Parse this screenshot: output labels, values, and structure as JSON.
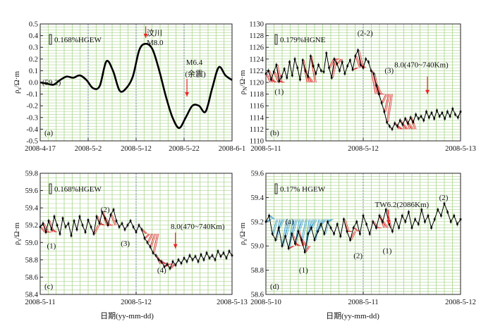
{
  "figure": {
    "xlabel_c": "日期(yy-mm-dd)",
    "xlabel_d": "日期(yy-mm-dd)"
  },
  "chart_data": [
    {
      "id": "a",
      "type": "line",
      "panel_label": "(a)",
      "ylabel": "ρs/Ω·m",
      "ylabel_main": "ρ",
      "ylabel_sub": "s",
      "ylabel_rest": "/Ω·m",
      "ylim": [
        -0.5,
        0.5
      ],
      "yticks": [
        "0.5",
        "0.4",
        "0.3",
        "0.2",
        "0.1",
        "0.0",
        "-0.1",
        "-0.2",
        "-0.3",
        "-0.4",
        "-0.5"
      ],
      "xticks": [
        "2008-4-17",
        "2008-5-2",
        "2008-5-12",
        "2008-5-22",
        "2008-6-1"
      ],
      "scale_text": "0.168%HGEW",
      "annotations": [
        {
          "key": "base",
          "text": "(59.2)"
        },
        {
          "key": "wenchuan1",
          "text": "汶川"
        },
        {
          "key": "wenchuan2",
          "text": "M8.0"
        },
        {
          "key": "after1",
          "text": "M6.4"
        },
        {
          "key": "after2",
          "text": "(余震)"
        }
      ],
      "series": [
        {
          "values": [
            0.0,
            -0.01,
            -0.02,
            0.02,
            0.05,
            0.04,
            0.06,
            0.02,
            -0.05,
            -0.03,
            0.18,
            0.1,
            -0.07,
            -0.05,
            0.05,
            0.28,
            0.33,
            0.28,
            0.1,
            -0.12,
            -0.3,
            -0.39,
            -0.3,
            -0.2,
            -0.2,
            -0.25,
            -0.05,
            0.13,
            0.06,
            0.02
          ]
        }
      ]
    },
    {
      "id": "b",
      "type": "line",
      "panel_label": "(b)",
      "ylabel": "ρN/Ω·m",
      "ylabel_main": "ρ",
      "ylabel_sub": "N",
      "ylabel_rest": "/Ω·m",
      "ylim": [
        1110,
        1130
      ],
      "yticks": [
        "1130",
        "1128",
        "1126",
        "1124",
        "1122",
        "1120",
        "1118",
        "1116",
        "1114",
        "1112",
        "1110"
      ],
      "xticks": [
        "2008-5-11",
        "2008-5-12",
        "2008-5-13"
      ],
      "scale_text": "0.179%HGNE",
      "annotations": [
        {
          "key": "p1",
          "text": "(1)"
        },
        {
          "key": "p22",
          "text": "(2-2)"
        },
        {
          "key": "p3",
          "text": "(3)"
        },
        {
          "key": "eq",
          "text": "8.0(470~740Km)"
        }
      ],
      "series": [
        {
          "values": [
            1121.5,
            1122,
            1120.5,
            1121.8,
            1123,
            1120.2,
            1121,
            1122.3,
            1120.8,
            1123.5,
            1121.2,
            1124,
            1122.5,
            1120.5,
            1123.8,
            1122,
            1121,
            1124.5,
            1122.8,
            1121.5,
            1123,
            1122,
            1121.8,
            1125,
            1122.5,
            1120.8,
            1124,
            1123.2,
            1122,
            1123.5,
            1121.5,
            1122.8,
            1123.8,
            1122.2,
            1124.5,
            1125.5,
            1123,
            1122.5,
            1124,
            1123.5,
            1122,
            1121.5,
            1119.5,
            1118,
            1116.5,
            1115,
            1113.2,
            1112.5,
            1112,
            1113,
            1112.5,
            1113.5,
            1112.8,
            1113.8,
            1113,
            1114,
            1113.2,
            1114.5,
            1113.8,
            1114.2,
            1113.5,
            1115,
            1114,
            1114.8,
            1113.8,
            1115.2,
            1114.2,
            1114.8,
            1113.8,
            1115,
            1114.2,
            1115.5,
            1114.5,
            1114,
            1115
          ]
        }
      ]
    },
    {
      "id": "c",
      "type": "line",
      "panel_label": "(c)",
      "ylabel": "ρs/Ω·m",
      "ylabel_main": "ρ",
      "ylabel_sub": "s",
      "ylabel_rest": "/Ω·m",
      "ylim": [
        58.4,
        59.8
      ],
      "yticks": [
        "59.8",
        "59.6",
        "59.4",
        "59.2",
        "59.0",
        "58.8",
        "58.6",
        "58.4"
      ],
      "xticks": [
        "2008-5-11",
        "2008-5-12",
        "2008-5-13"
      ],
      "scale_text": "0.168%HGEW",
      "annotations": [
        {
          "key": "p1",
          "text": "(1)"
        },
        {
          "key": "p2",
          "text": "(2)"
        },
        {
          "key": "p3",
          "text": "(3)"
        },
        {
          "key": "p4",
          "text": "(4)"
        },
        {
          "key": "eq",
          "text": "8.0(470~740Km)"
        }
      ],
      "series": [
        {
          "values": [
            59.18,
            59.22,
            59.12,
            59.25,
            59.15,
            59.3,
            59.2,
            59.1,
            59.28,
            59.18,
            59.22,
            59.08,
            59.25,
            59.15,
            59.3,
            59.2,
            59.12,
            59.26,
            59.18,
            59.1,
            59.3,
            59.22,
            59.35,
            59.28,
            59.2,
            59.32,
            59.38,
            59.25,
            59.18,
            59.22,
            59.15,
            59.2,
            59.25,
            59.18,
            59.12,
            59.2,
            59.15,
            59.05,
            59.0,
            58.95,
            58.88,
            58.85,
            58.8,
            58.78,
            58.72,
            58.75,
            58.7,
            58.78,
            58.74,
            58.8,
            58.76,
            58.82,
            58.78,
            58.85,
            58.8,
            58.84,
            58.78,
            58.86,
            58.8,
            58.88,
            58.82,
            58.85,
            58.8,
            58.9,
            58.84,
            58.88,
            58.82,
            58.9,
            58.85
          ]
        }
      ]
    },
    {
      "id": "d",
      "type": "line",
      "panel_label": "(d)",
      "ylabel": "ρs/Ω·m",
      "ylabel_main": "ρ",
      "ylabel_sub": "s",
      "ylabel_rest": "/Ω·m",
      "ylim": [
        58.6,
        59.6
      ],
      "yticks": [
        "59.6",
        "59.4",
        "59.2",
        "59.0",
        "58.8",
        "58.6"
      ],
      "xticks": [
        "2008-5-10",
        "2008-5-11",
        "2008-5-12"
      ],
      "scale_text": "0.17% HGEW",
      "annotations": [
        {
          "key": "a",
          "text": "(a)"
        },
        {
          "key": "p1a",
          "text": "(1)"
        },
        {
          "key": "p2",
          "text": "(2)"
        },
        {
          "key": "p1b",
          "text": "(1)"
        },
        {
          "key": "tw1",
          "text": "TW6.2(2086Km)"
        },
        {
          "key": "p2b",
          "text": "(2)"
        }
      ],
      "series": [
        {
          "values": [
            59.2,
            59.25,
            59.1,
            59.05,
            59.15,
            59.0,
            59.08,
            58.98,
            59.1,
            59.02,
            59.12,
            59.05,
            58.95,
            59.1,
            59.15,
            59.05,
            59.12,
            59.18,
            59.1,
            59.2,
            59.15,
            59.1,
            59.18,
            59.08,
            59.22,
            59.12,
            59.05,
            59.15,
            59.2,
            59.1,
            59.25,
            59.18,
            59.1,
            59.2,
            59.15,
            59.25,
            59.2,
            59.3,
            59.18,
            59.12,
            59.22,
            59.15,
            59.25,
            59.2,
            59.28,
            59.15,
            59.22,
            59.18,
            59.3,
            59.2,
            59.25,
            59.15,
            59.22,
            59.3,
            59.25,
            59.35,
            59.28,
            59.2,
            59.25,
            59.18,
            59.22
          ]
        }
      ]
    }
  ]
}
